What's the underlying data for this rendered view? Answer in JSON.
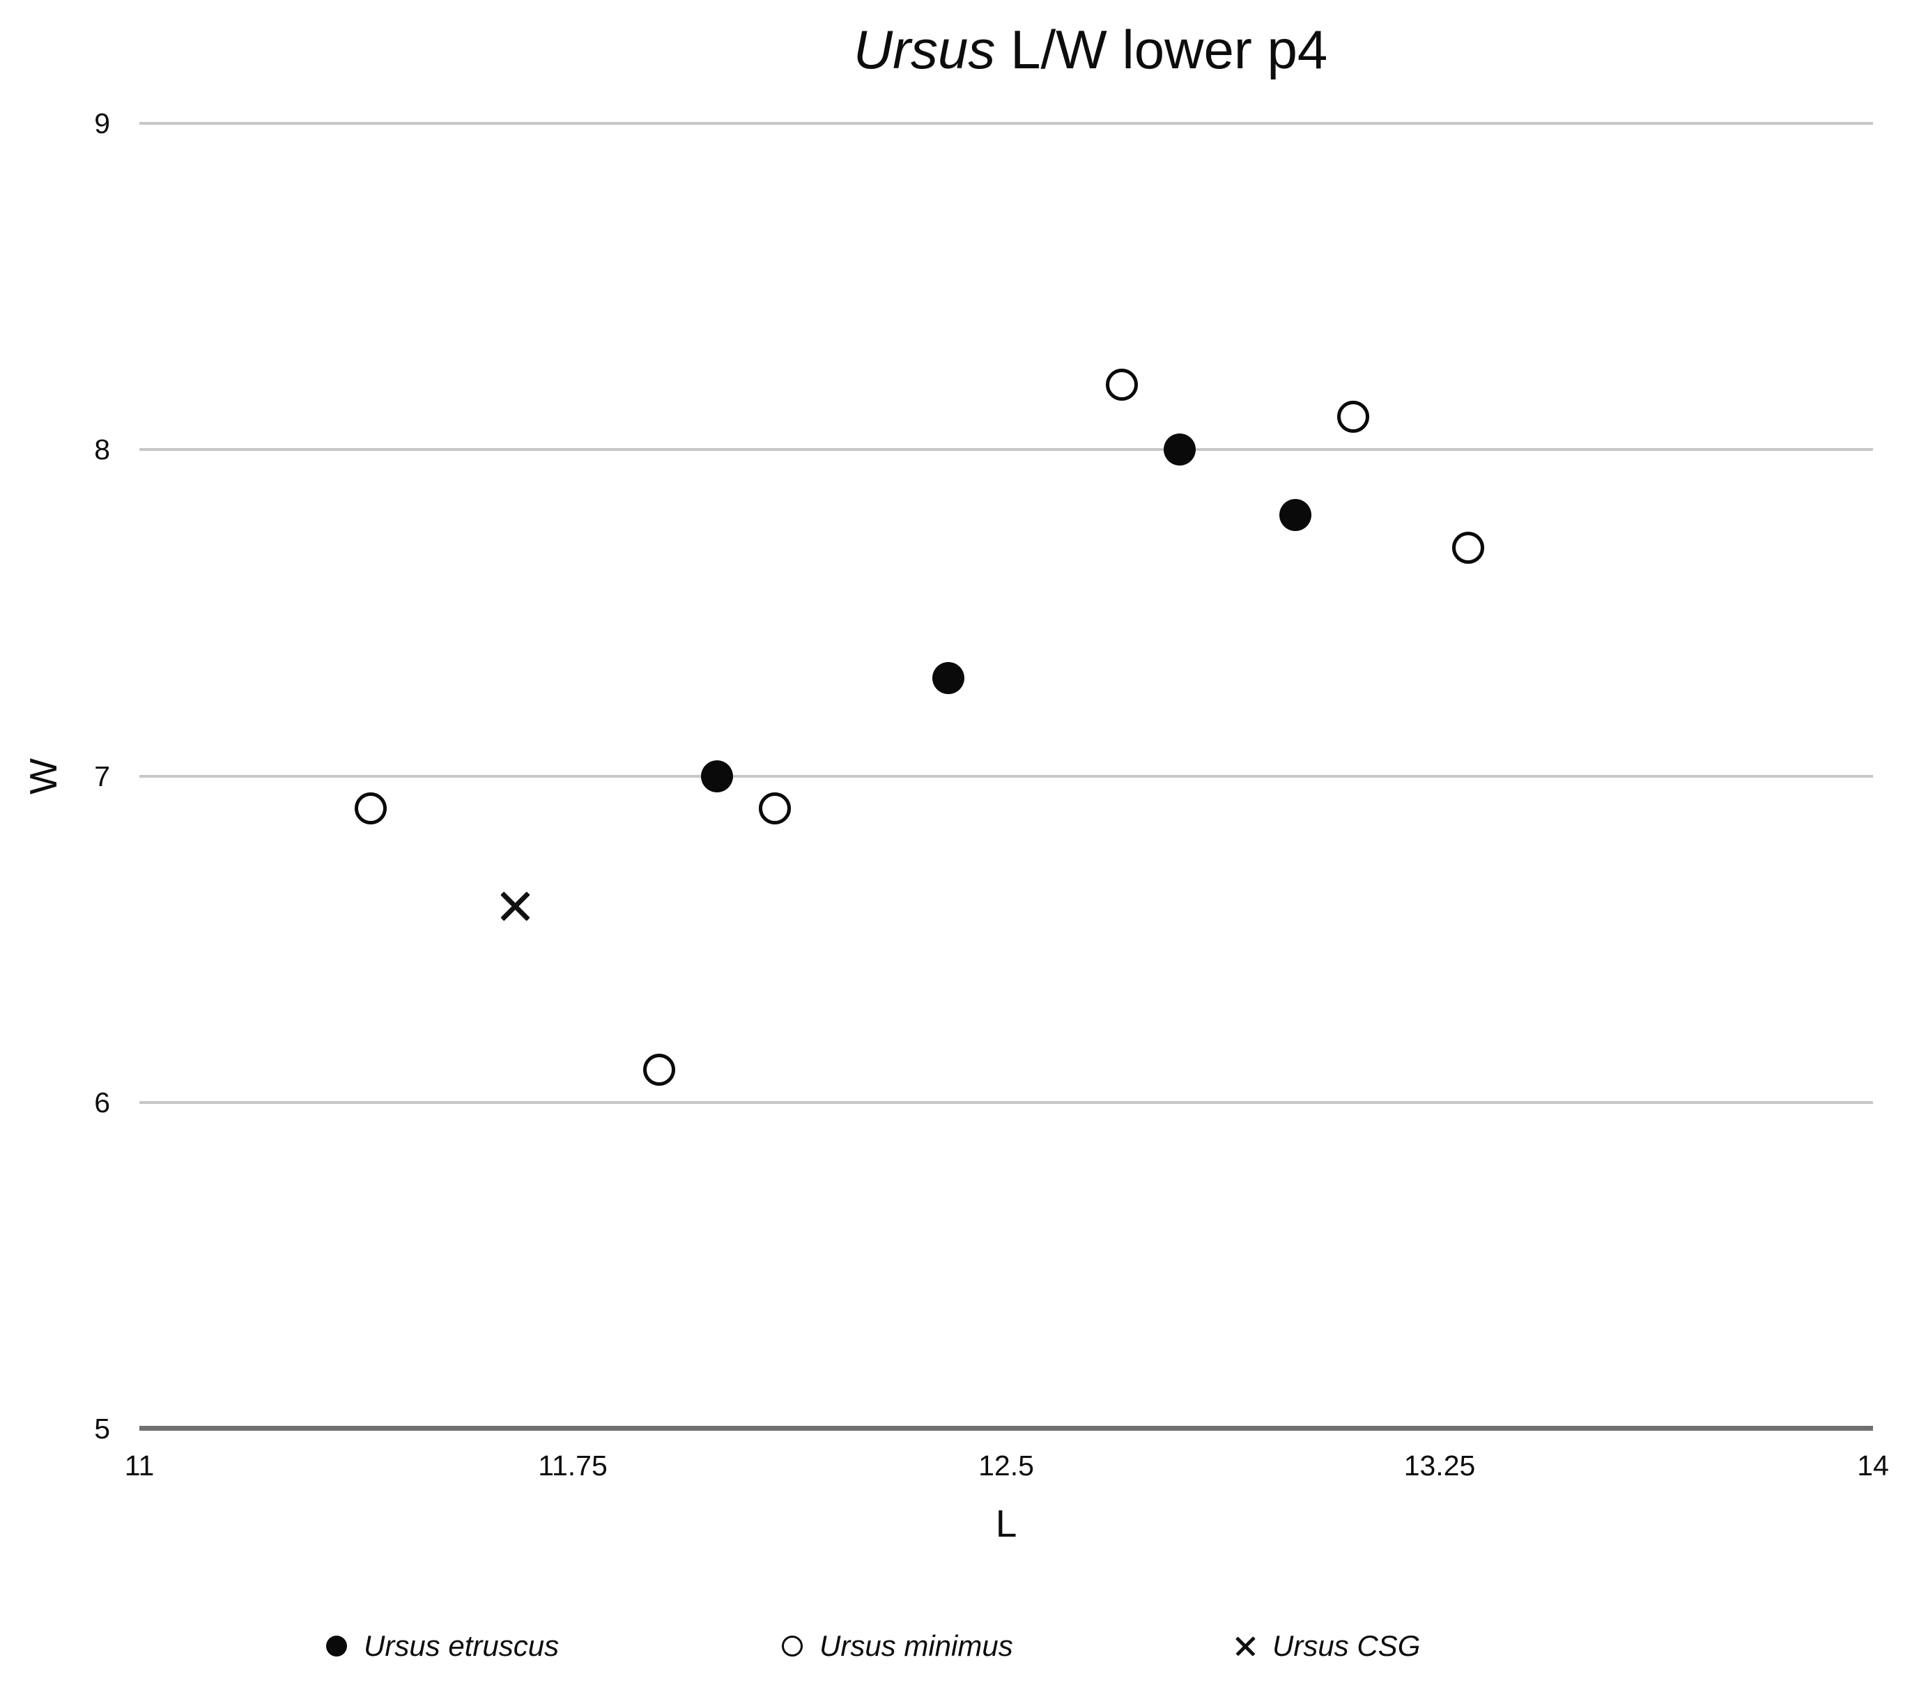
{
  "title": {
    "italic_part": "Ursus",
    "rest": " L/W lower p4"
  },
  "chart_data": {
    "type": "scatter",
    "title": "Ursus L/W lower p4",
    "xlabel": "L",
    "ylabel": "W",
    "xlim": [
      11,
      14
    ],
    "ylim": [
      5,
      9
    ],
    "xticks": [
      11,
      11.75,
      12.5,
      13.25,
      14
    ],
    "yticks": [
      5,
      6,
      7,
      8,
      9
    ],
    "grid": "horizontal-only",
    "legend_position": "bottom",
    "colors": {
      "marker": "#0a0a0a",
      "gridline": "#c7c7c7",
      "axis_line": "#6f6f6f",
      "text": "#0d0d0d",
      "background": "#ffffff"
    },
    "series": [
      {
        "name": "Ursus etruscus",
        "marker": "filled-circle",
        "points": [
          [
            12.8,
            8.0
          ],
          [
            13.0,
            7.8
          ],
          [
            12.4,
            7.3
          ],
          [
            12.0,
            7.0
          ]
        ]
      },
      {
        "name": "Ursus minimus",
        "marker": "open-circle",
        "points": [
          [
            12.7,
            8.2
          ],
          [
            13.1,
            8.1
          ],
          [
            13.3,
            7.7
          ],
          [
            11.4,
            6.9
          ],
          [
            12.1,
            6.9
          ],
          [
            11.9,
            6.1
          ]
        ]
      },
      {
        "name": "Ursus CSG",
        "marker": "x",
        "points": [
          [
            11.65,
            6.6
          ]
        ]
      }
    ]
  }
}
